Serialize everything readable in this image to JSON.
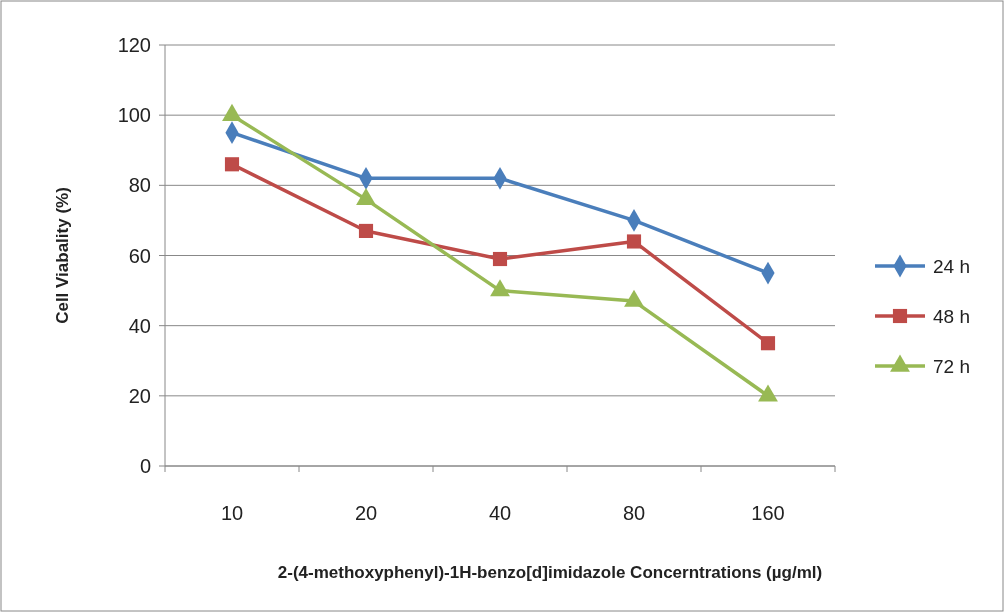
{
  "chart_data": {
    "type": "line",
    "xlabel": "2-(4-methoxyphenyl)-1H-benzo[d]imidazole Concerntrations (µg/ml)",
    "ylabel": "Cell Viabality (%)",
    "categories": [
      "10",
      "20",
      "40",
      "80",
      "160"
    ],
    "series": [
      {
        "name": "24 h",
        "color": "#4a7ebb",
        "marker": "diamond",
        "values": [
          95,
          82,
          82,
          70,
          55
        ]
      },
      {
        "name": "48 h",
        "color": "#be4b48",
        "marker": "square",
        "values": [
          86,
          67,
          59,
          64,
          35
        ]
      },
      {
        "name": "72 h",
        "color": "#98b954",
        "marker": "triangle",
        "values": [
          100,
          76,
          50,
          47,
          20
        ]
      }
    ],
    "ylim": [
      0,
      120
    ],
    "yticks": [
      0,
      20,
      40,
      60,
      80,
      100,
      120
    ],
    "grid": "y",
    "legend": "right"
  }
}
